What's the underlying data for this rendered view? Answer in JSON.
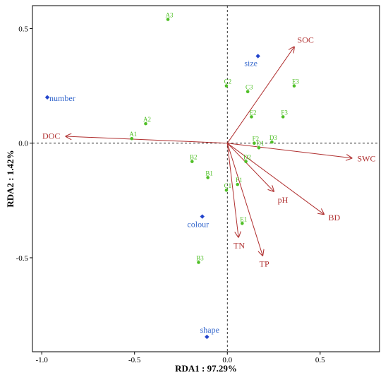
{
  "chart_data": {
    "type": "scatter",
    "title": "",
    "xlabel": "RDA1 : 97.29%",
    "ylabel": "RDA2 : 1.42%",
    "xlim": [
      -1.05,
      0.82
    ],
    "ylim": [
      -0.91,
      0.6
    ],
    "xticks": [
      -1.0,
      -0.5,
      0.0,
      0.5
    ],
    "xtick_labels": [
      "-1.0",
      "-0.5",
      "0.0",
      "0.5"
    ],
    "yticks": [
      -0.5,
      0.0,
      0.5
    ],
    "ytick_labels": [
      "-0.5",
      "0.0",
      "0.5"
    ],
    "reference_lines": {
      "x": 0,
      "y": 0,
      "style": "dotted"
    },
    "colors": {
      "sites": "#4fbf26",
      "site_text": "#4fbf26",
      "factors": "#2244cc",
      "factor_text": "#3366cc",
      "arrows": "#b03030",
      "env_text": "#b03030"
    },
    "sites": [
      {
        "label": "A1",
        "x": -0.515,
        "y": 0.02
      },
      {
        "label": "A2",
        "x": -0.44,
        "y": 0.085
      },
      {
        "label": "A3",
        "x": -0.32,
        "y": 0.54
      },
      {
        "label": "B1",
        "x": -0.105,
        "y": -0.15
      },
      {
        "label": "B2",
        "x": -0.19,
        "y": -0.08
      },
      {
        "label": "B3",
        "x": -0.155,
        "y": -0.52
      },
      {
        "label": "C1",
        "x": -0.005,
        "y": -0.205
      },
      {
        "label": "C2",
        "x": -0.005,
        "y": 0.25
      },
      {
        "label": "C3",
        "x": 0.11,
        "y": 0.225
      },
      {
        "label": "D1",
        "x": 0.17,
        "y": -0.02
      },
      {
        "label": "D2",
        "x": 0.1,
        "y": -0.08
      },
      {
        "label": "D3",
        "x": 0.24,
        "y": 0.005
      },
      {
        "label": "E1",
        "x": 0.08,
        "y": -0.35
      },
      {
        "label": "E2",
        "x": 0.13,
        "y": 0.115
      },
      {
        "label": "E3",
        "x": 0.36,
        "y": 0.25
      },
      {
        "label": "F1",
        "x": 0.055,
        "y": -0.18
      },
      {
        "label": "F2",
        "x": 0.145,
        "y": 0.0
      },
      {
        "label": "F3",
        "x": 0.3,
        "y": 0.115
      }
    ],
    "factors": [
      {
        "label": "size",
        "x": 0.165,
        "y": 0.38
      },
      {
        "label": "number",
        "x": -0.97,
        "y": 0.2
      },
      {
        "label": "colour",
        "x": -0.135,
        "y": -0.32
      },
      {
        "label": "shape",
        "x": -0.11,
        "y": -0.845
      }
    ],
    "environmental_vectors": [
      {
        "label": "SOC",
        "x": 0.36,
        "y": 0.42
      },
      {
        "label": "DOC",
        "x": -0.87,
        "y": 0.03
      },
      {
        "label": "SWC",
        "x": 0.67,
        "y": -0.065
      },
      {
        "label": "pH",
        "x": 0.25,
        "y": -0.21
      },
      {
        "label": "BD",
        "x": 0.52,
        "y": -0.31
      },
      {
        "label": "TN",
        "x": 0.06,
        "y": -0.41
      },
      {
        "label": "TP",
        "x": 0.19,
        "y": -0.49
      }
    ]
  }
}
